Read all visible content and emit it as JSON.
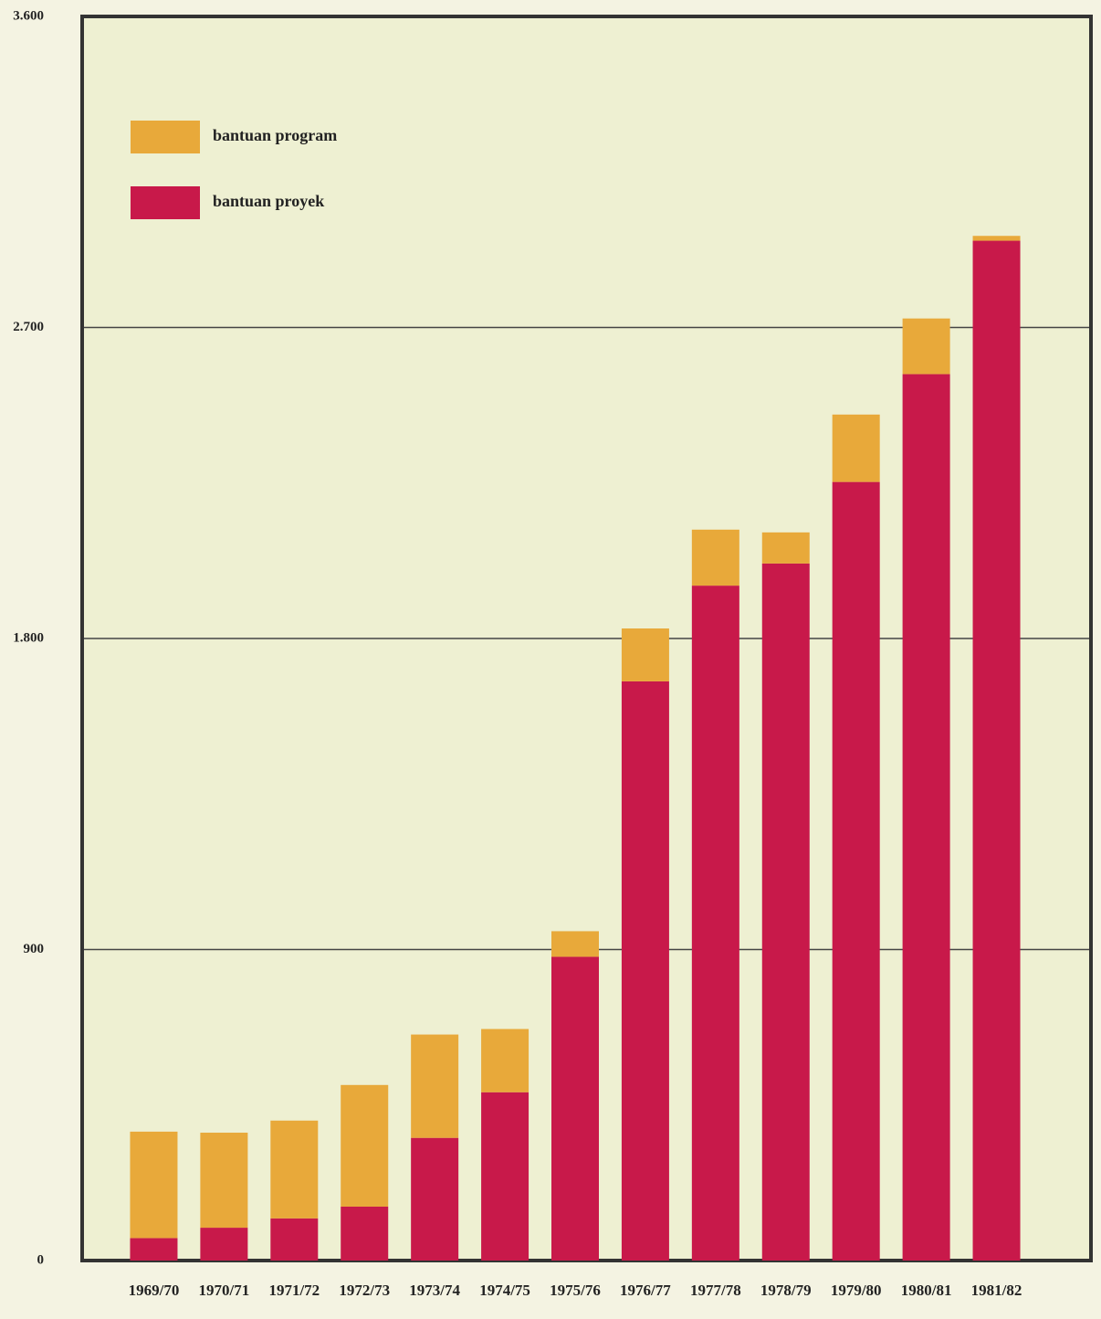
{
  "chart_data": {
    "type": "stacked_bar",
    "categories": [
      "1969/70",
      "1970/71",
      "1971/72",
      "1972/73",
      "1973/74",
      "1974/75",
      "1975/76",
      "1976/77",
      "1977/78",
      "1978/79",
      "1979/80",
      "1980/81",
      "1981/82"
    ],
    "series": [
      {
        "name": "bantuan proyek",
        "color": "#c8194a",
        "values": [
          65,
          95,
          122,
          156,
          355,
          487,
          879,
          1676,
          1953,
          2017,
          2253,
          2565,
          2951
        ]
      },
      {
        "name": "bantuan program",
        "color": "#e8a93a",
        "values": [
          308,
          275,
          283,
          352,
          299,
          183,
          74,
          153,
          162,
          90,
          195,
          161,
          14
        ]
      }
    ],
    "ylim": [
      0,
      3600
    ],
    "yticks": [
      0,
      900,
      {
        "value": 1800,
        "label": "1.800"
      },
      {
        "value": 2700,
        "label": "2.700"
      },
      {
        "value": 3600,
        "label": "3.600"
      }
    ],
    "grid": true,
    "legend": "upper left"
  }
}
